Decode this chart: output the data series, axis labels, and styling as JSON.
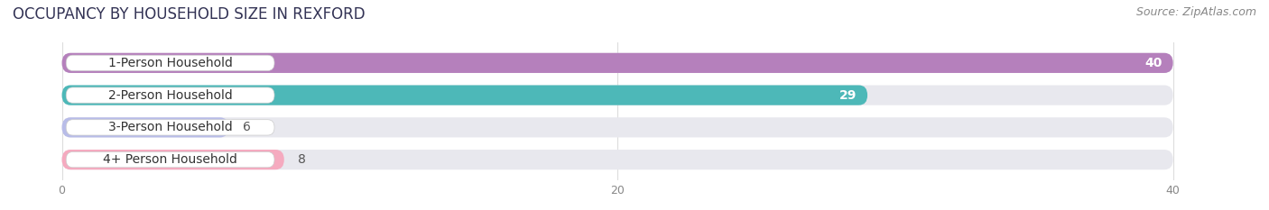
{
  "title": "OCCUPANCY BY HOUSEHOLD SIZE IN REXFORD",
  "source": "Source: ZipAtlas.com",
  "categories": [
    "1-Person Household",
    "2-Person Household",
    "3-Person Household",
    "4+ Person Household"
  ],
  "values": [
    40,
    29,
    6,
    8
  ],
  "bar_colors": [
    "#b580bc",
    "#4db8b8",
    "#b8bce8",
    "#f5aabf"
  ],
  "track_color": "#e8e8ee",
  "xlim": [
    -2,
    43
  ],
  "xmax": 40,
  "xticks": [
    0,
    20,
    40
  ],
  "background_color": "#ffffff",
  "title_fontsize": 12,
  "source_fontsize": 9,
  "label_fontsize": 10,
  "value_fontsize": 10
}
